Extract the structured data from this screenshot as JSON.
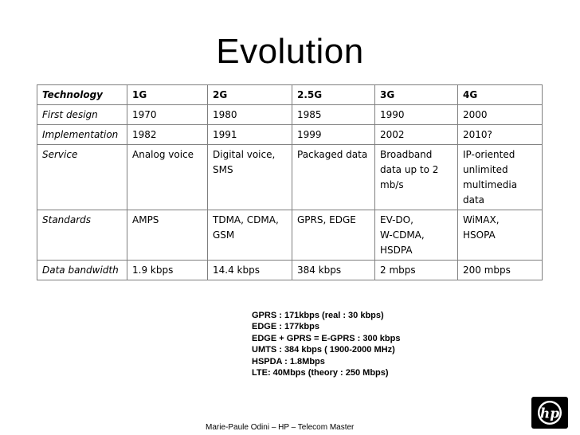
{
  "title": "Evolution",
  "table": {
    "header": [
      "Technology",
      "1G",
      "2G",
      "2.5G",
      "3G",
      "4G"
    ],
    "rows": [
      {
        "label": "First design",
        "cells": [
          [
            "1970"
          ],
          [
            "1980"
          ],
          [
            "1985"
          ],
          [
            "1990"
          ],
          [
            "2000"
          ]
        ]
      },
      {
        "label": "Implementation",
        "cells": [
          [
            "1982"
          ],
          [
            "1991"
          ],
          [
            "1999"
          ],
          [
            "2002"
          ],
          [
            "2010?"
          ]
        ]
      },
      {
        "label": "Service",
        "cells": [
          [
            "Analog voice"
          ],
          [
            "Digital voice,",
            "SMS"
          ],
          [
            "Packaged data"
          ],
          [
            "Broadband",
            "data up to 2",
            "mb/s"
          ],
          [
            "IP-oriented",
            "unlimited",
            "multimedia",
            "data"
          ]
        ]
      },
      {
        "label": "Standards",
        "cells": [
          [
            "AMPS"
          ],
          [
            "TDMA, CDMA,",
            "GSM"
          ],
          [
            "GPRS, EDGE"
          ],
          [
            "EV-DO,",
            "W-CDMA,",
            "HSDPA"
          ],
          [
            "WiMAX,",
            "HSOPA"
          ]
        ]
      },
      {
        "label": "Data bandwidth",
        "cells": [
          [
            "1.9 kbps"
          ],
          [
            "14.4 kbps"
          ],
          [
            "384 kbps"
          ],
          [
            "2 mbps"
          ],
          [
            "200 mbps"
          ]
        ]
      }
    ]
  },
  "notes": [
    "GPRS : 171kbps (real : 30 kbps)",
    "EDGE : 177kbps",
    "EDGE + GPRS = E-GPRS : 300 kbps",
    "UMTS : 384 kbps ( 1900-2000 MHz)",
    "HSPDA : 1.8Mbps",
    "LTE: 40Mbps (theory : 250 Mbps)"
  ],
  "footer": "Marie-Paule Odini – HP – Telecom Master",
  "logo": {
    "icon": "hp-logo-icon",
    "color": "#000000"
  }
}
